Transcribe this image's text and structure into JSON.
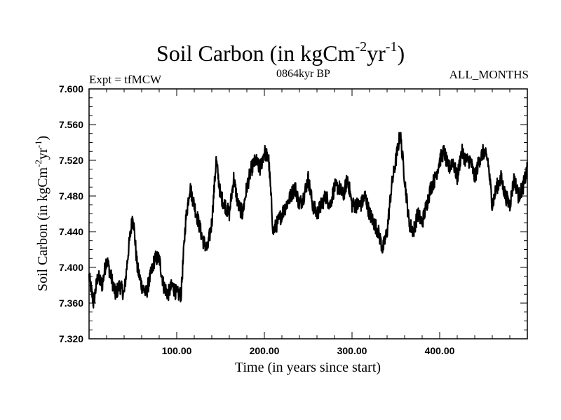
{
  "chart_data": {
    "type": "line",
    "title_main": "Soil Carbon (in kgCm",
    "title_exp1": "-2",
    "title_mid": "yr",
    "title_exp2": "-1",
    "title_end": ")",
    "subtitle_left": "Expt = tfMCW",
    "subtitle_center": "0864kyr BP",
    "subtitle_right": "ALL_MONTHS",
    "xlabel": "Time (in years since start)",
    "ylabel_main": "Soil Carbon (in kgCm",
    "ylabel_exp1": "-2",
    "ylabel_mid": "yr",
    "ylabel_exp2": "-1",
    "ylabel_end": ")",
    "xlim": [
      0,
      500
    ],
    "ylim": [
      7.32,
      7.6
    ],
    "x_ticks": [
      100,
      200,
      300,
      400
    ],
    "x_tick_labels": [
      "100.00",
      "200.00",
      "300.00",
      "400.00"
    ],
    "y_ticks": [
      7.32,
      7.36,
      7.4,
      7.44,
      7.48,
      7.52,
      7.56,
      7.6
    ],
    "y_tick_labels": [
      "7.320",
      "7.360",
      "7.400",
      "7.440",
      "7.480",
      "7.520",
      "7.560",
      "7.600"
    ],
    "series": [
      {
        "name": "Soil Carbon",
        "color": "#000000",
        "x": [
          0,
          5,
          10,
          15,
          20,
          25,
          30,
          35,
          40,
          45,
          50,
          55,
          60,
          65,
          70,
          75,
          80,
          85,
          90,
          95,
          100,
          105,
          110,
          115,
          120,
          125,
          130,
          135,
          140,
          145,
          150,
          155,
          160,
          165,
          170,
          175,
          180,
          185,
          190,
          195,
          200,
          205,
          210,
          215,
          220,
          225,
          230,
          235,
          240,
          245,
          250,
          255,
          260,
          265,
          270,
          275,
          280,
          285,
          290,
          295,
          300,
          305,
          310,
          315,
          320,
          325,
          330,
          335,
          340,
          345,
          350,
          355,
          360,
          365,
          370,
          375,
          380,
          385,
          390,
          395,
          400,
          405,
          410,
          415,
          420,
          425,
          430,
          435,
          440,
          445,
          450,
          455,
          460,
          465,
          470,
          475,
          480,
          485,
          490,
          495,
          500
        ],
        "y": [
          7.39,
          7.36,
          7.39,
          7.38,
          7.41,
          7.39,
          7.37,
          7.38,
          7.37,
          7.42,
          7.46,
          7.4,
          7.38,
          7.37,
          7.39,
          7.41,
          7.41,
          7.38,
          7.37,
          7.38,
          7.37,
          7.37,
          7.45,
          7.49,
          7.47,
          7.45,
          7.43,
          7.42,
          7.45,
          7.52,
          7.48,
          7.47,
          7.46,
          7.5,
          7.47,
          7.46,
          7.49,
          7.51,
          7.52,
          7.51,
          7.53,
          7.52,
          7.44,
          7.45,
          7.46,
          7.47,
          7.48,
          7.49,
          7.47,
          7.48,
          7.5,
          7.47,
          7.46,
          7.47,
          7.48,
          7.47,
          7.49,
          7.49,
          7.48,
          7.5,
          7.47,
          7.47,
          7.47,
          7.48,
          7.46,
          7.45,
          7.44,
          7.42,
          7.44,
          7.49,
          7.52,
          7.55,
          7.5,
          7.45,
          7.44,
          7.46,
          7.45,
          7.47,
          7.49,
          7.5,
          7.52,
          7.53,
          7.51,
          7.52,
          7.5,
          7.53,
          7.52,
          7.52,
          7.5,
          7.52,
          7.53,
          7.52,
          7.47,
          7.49,
          7.5,
          7.48,
          7.47,
          7.5,
          7.48,
          7.49,
          7.51
        ]
      }
    ]
  }
}
